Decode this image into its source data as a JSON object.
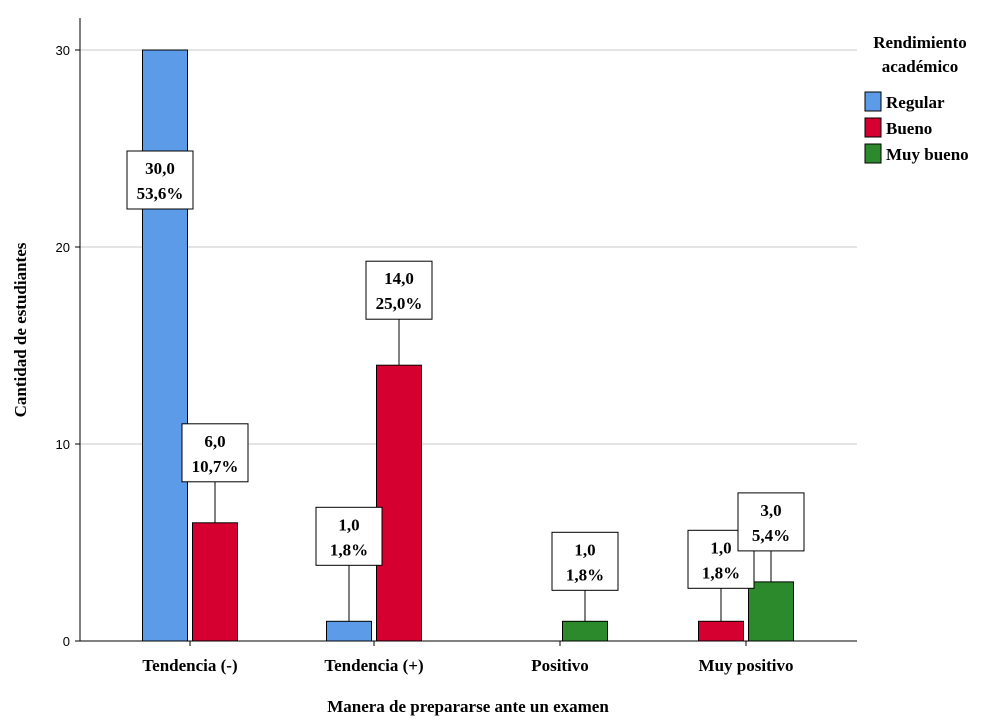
{
  "chart_data": {
    "type": "bar",
    "title": "",
    "xlabel": "Manera de prepararse ante un examen",
    "ylabel": "Cantidad de estudiantes",
    "ylim": [
      0,
      32
    ],
    "yticks": [
      "0",
      "10",
      "20",
      "30"
    ],
    "grid": true,
    "categories": [
      "Tendencia (-)",
      "Tendencia (+)",
      "Positivo",
      "Muy positivo"
    ],
    "legend": {
      "title": [
        "Rendimiento",
        "académico"
      ],
      "position": "right"
    },
    "series": [
      {
        "name": "Regular",
        "color": "#5b9be8",
        "values": [
          30,
          1,
          null,
          null
        ],
        "labels": [
          [
            "30,0",
            "53,6%"
          ],
          [
            "1,0",
            "1,8%"
          ],
          null,
          null
        ]
      },
      {
        "name": "Bueno",
        "color": "#d5002f",
        "values": [
          6,
          14,
          null,
          1
        ],
        "labels": [
          [
            "6,0",
            "10,7%"
          ],
          [
            "14,0",
            "25,0%"
          ],
          null,
          [
            "1,0",
            "1,8%"
          ]
        ]
      },
      {
        "name": "Muy bueno",
        "color": "#2c8a2c",
        "values": [
          null,
          null,
          1,
          3
        ],
        "labels": [
          null,
          null,
          [
            "1,0",
            "1,8%"
          ],
          [
            "3,0",
            "5,4%"
          ]
        ]
      }
    ]
  }
}
